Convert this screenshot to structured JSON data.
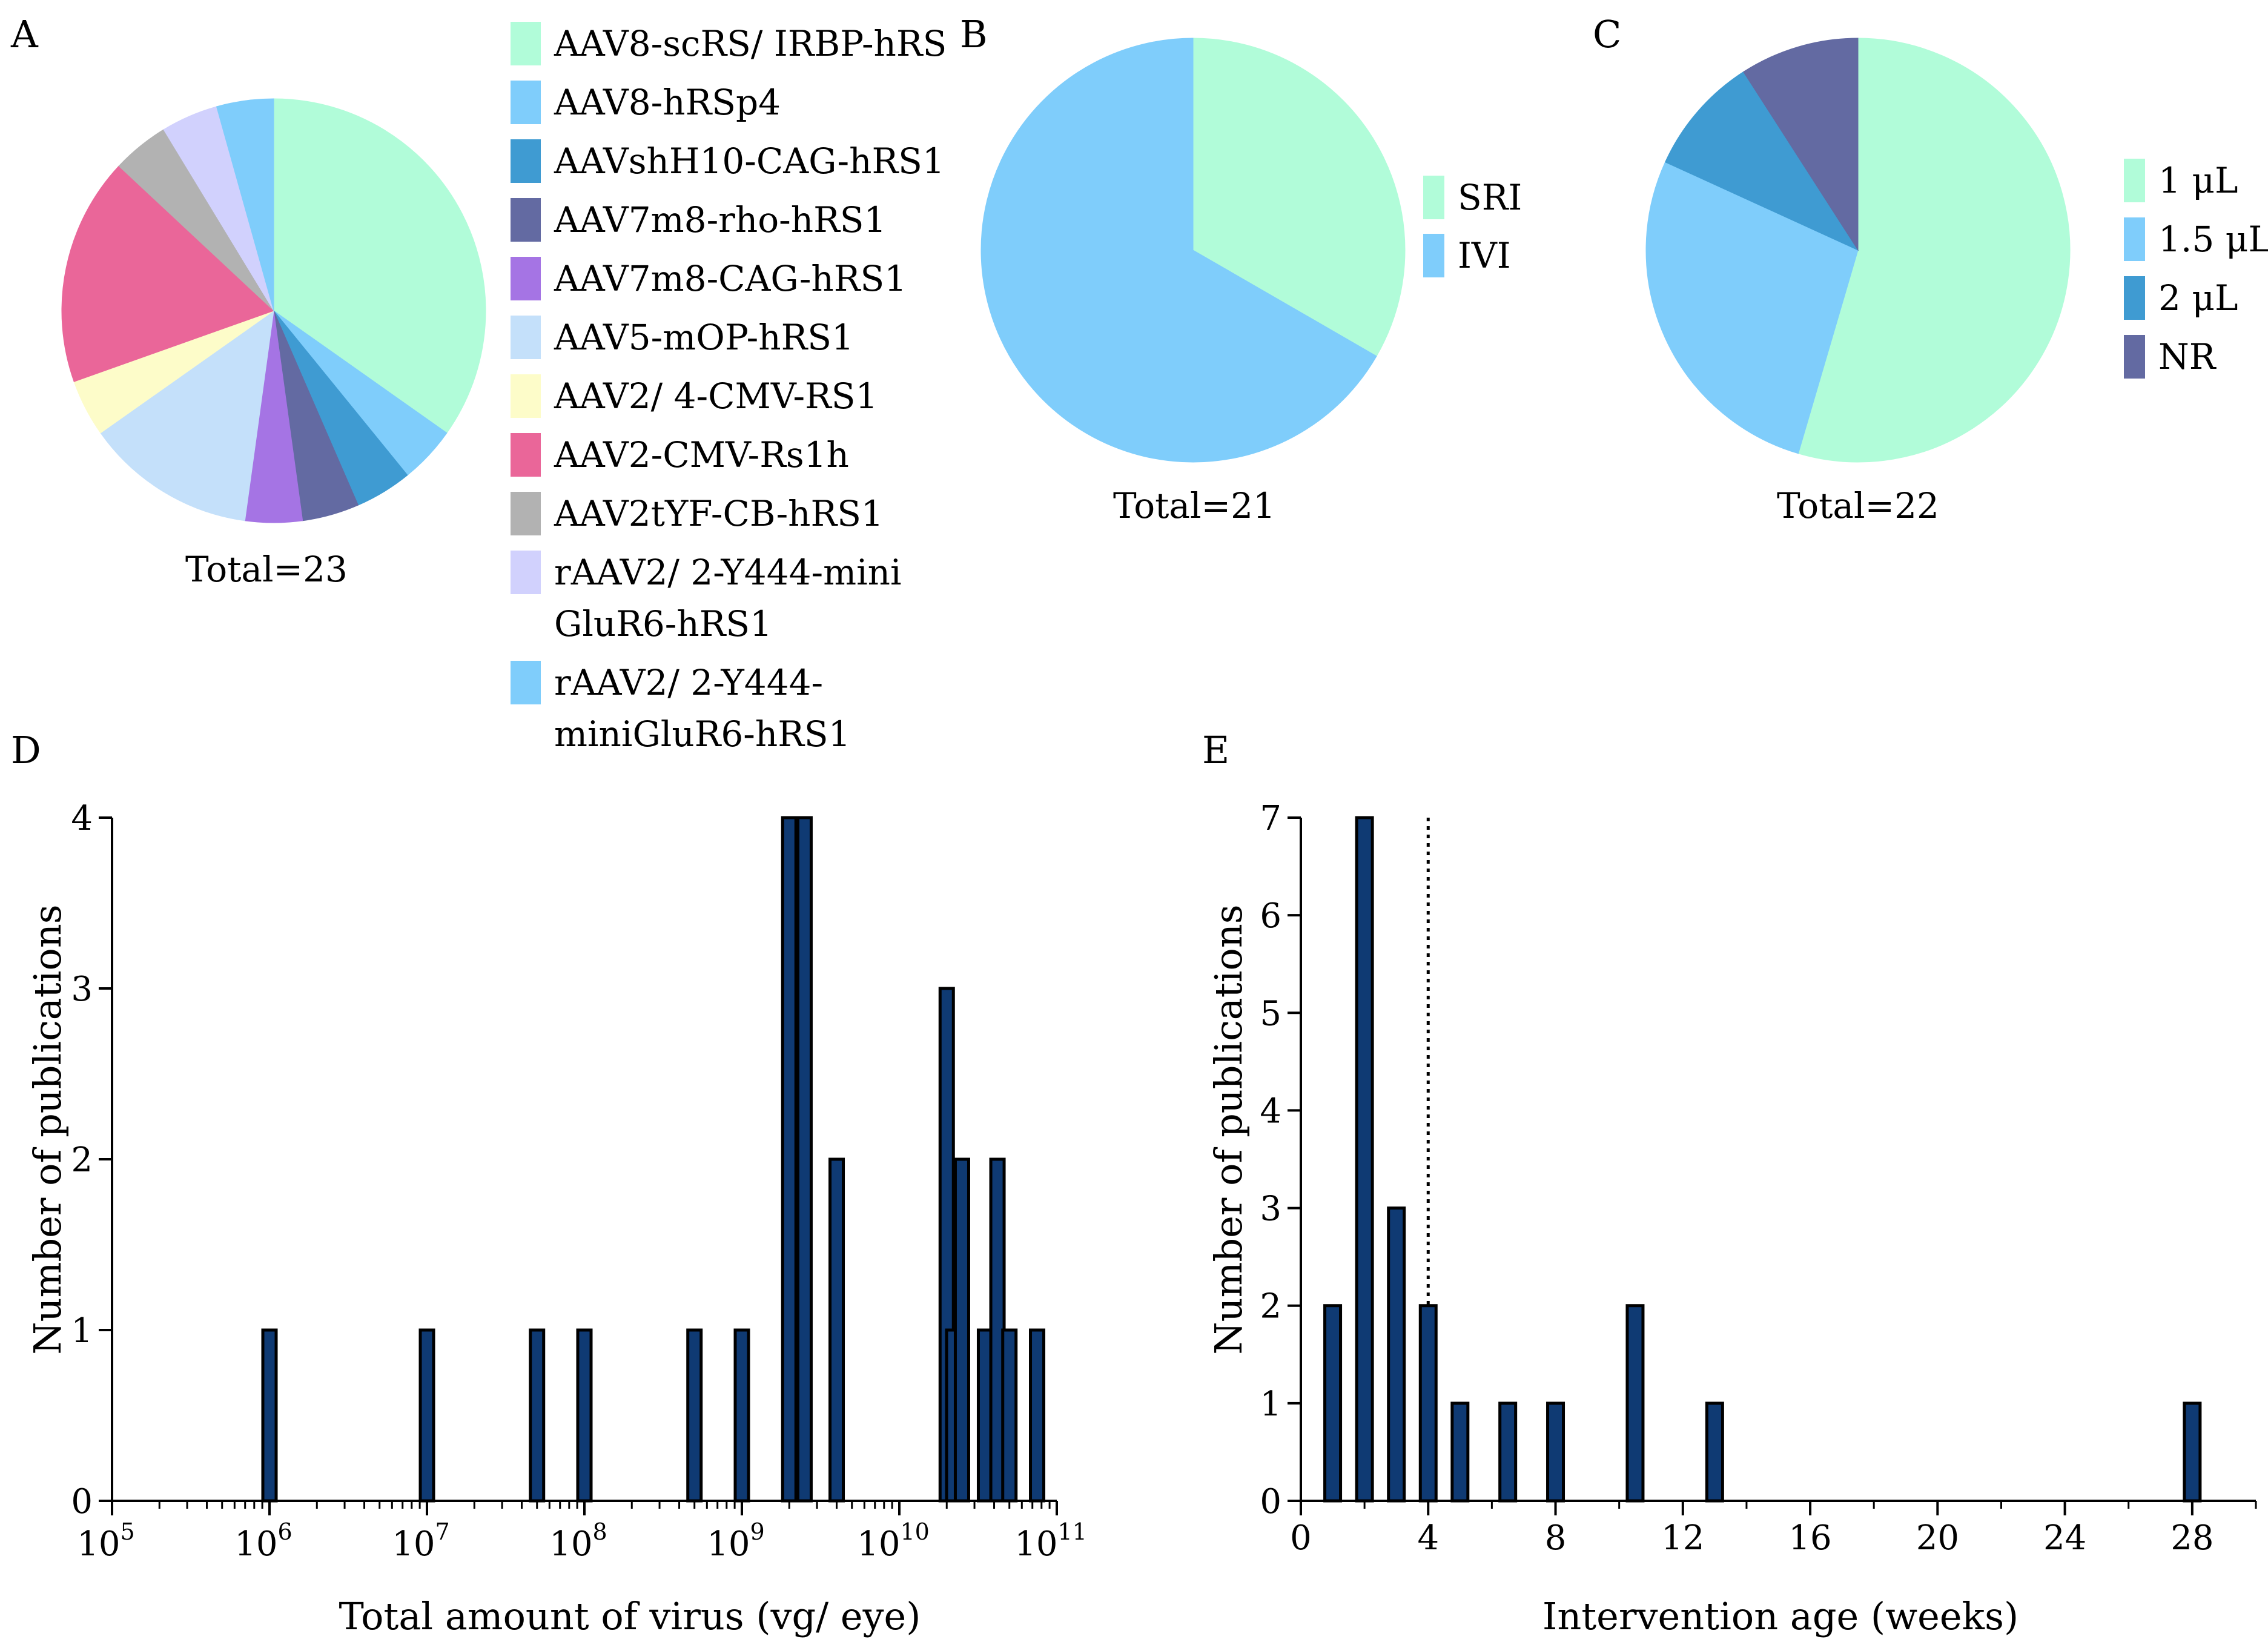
{
  "chart_data": [
    {
      "panel": "A",
      "type": "pie",
      "total_label": "Total=23",
      "total": 23,
      "slices": [
        {
          "label": "AAV8-scRS/ IRBP-hRS",
          "value": 8,
          "color": "#b1fcd9"
        },
        {
          "label": "AAV8-hRSp4",
          "value": 1,
          "color": "#7fcdfb"
        },
        {
          "label": "AAVshH10-CAG-hRS1",
          "value": 1,
          "color": "#3f9bd2"
        },
        {
          "label": "AAV7m8-rho-hRS1",
          "value": 1,
          "color": "#636aa2"
        },
        {
          "label": "AAV7m8-CAG-hRS1",
          "value": 1,
          "color": "#a574e4"
        },
        {
          "label": "AAV5-mOP-hRS1",
          "value": 3,
          "color": "#c4e0fa"
        },
        {
          "label": "AAV2/ 4-CMV-RS1",
          "value": 1,
          "color": "#fdfcc9"
        },
        {
          "label": "AAV2-CMV-Rs1h",
          "value": 4,
          "color": "#ea6699"
        },
        {
          "label": "AAV2tYF-CB-hRS1",
          "value": 1,
          "color": "#b2b2b2"
        },
        {
          "label": "rAAV2/ 2-Y444-mini GluR6-hRS1",
          "label_lines": [
            "rAAV2/ 2-Y444-mini",
            "GluR6-hRS1"
          ],
          "value": 1,
          "color": "#d1d1fd"
        },
        {
          "label": "rAAV2/ 2-Y444-miniGluR6-hRS1",
          "label_lines": [
            "rAAV2/ 2-Y444-",
            "miniGluR6-hRS1"
          ],
          "value": 1,
          "color": "#7fcdfb"
        }
      ]
    },
    {
      "panel": "B",
      "type": "pie",
      "total_label": "Total=21",
      "total": 21,
      "slices": [
        {
          "label": "SRI",
          "value": 7,
          "color": "#b1fcd9"
        },
        {
          "label": "IVI",
          "value": 14,
          "color": "#7fcdfb"
        }
      ]
    },
    {
      "panel": "C",
      "type": "pie",
      "total_label": "Total=22",
      "total": 22,
      "slices": [
        {
          "label": "1 μL",
          "value": 12,
          "color": "#b1fcd9"
        },
        {
          "label": "1.5 μL",
          "value": 6,
          "color": "#7fcdfb"
        },
        {
          "label": "2 μL",
          "value": 2,
          "color": "#3f9bd2"
        },
        {
          "label": "NR",
          "value": 2,
          "color": "#636aa2"
        }
      ]
    },
    {
      "panel": "D",
      "type": "bar",
      "xscale": "log10",
      "xlabel": "Total amount of virus (vg/ eye)",
      "ylabel": "Number of publications",
      "xlim_exponents": [
        5,
        11
      ],
      "xtick_exponents": [
        "5",
        "6",
        "7",
        "8",
        "9",
        "10",
        "11"
      ],
      "xtick_base": "10",
      "ylim": [
        0,
        4
      ],
      "yticks": [
        "0",
        "1",
        "2",
        "3",
        "4"
      ],
      "bar_color": "#0f3a73",
      "x": [
        1000000.0,
        10000000.0,
        50000000.0,
        100000000.0,
        500000000.0,
        1000000000.0,
        2000000000.0,
        2500000000.0,
        4000000000.0,
        20000000000.0,
        22000000000.0,
        25000000000.0,
        35000000000.0,
        42000000000.0,
        50000000000.0,
        75000000000.0
      ],
      "values": [
        1,
        1,
        1,
        1,
        1,
        1,
        4,
        4,
        2,
        3,
        1,
        2,
        1,
        2,
        1,
        1
      ]
    },
    {
      "panel": "E",
      "type": "bar",
      "xlabel": "Intervention age (weeks)",
      "ylabel": "Number of publications",
      "xlim": [
        0,
        30
      ],
      "xticks": [
        "0",
        "4",
        "8",
        "12",
        "16",
        "20",
        "24",
        "28"
      ],
      "ylim": [
        0,
        7
      ],
      "yticks": [
        "0",
        "1",
        "2",
        "3",
        "4",
        "5",
        "6",
        "7"
      ],
      "reference_line_x": 4,
      "bar_color": "#0f3a73",
      "x": [
        1,
        2,
        3,
        4,
        5,
        6.5,
        8,
        10.5,
        13,
        28
      ],
      "values": [
        2,
        7,
        3,
        2,
        1,
        1,
        1,
        2,
        1,
        1
      ]
    }
  ]
}
